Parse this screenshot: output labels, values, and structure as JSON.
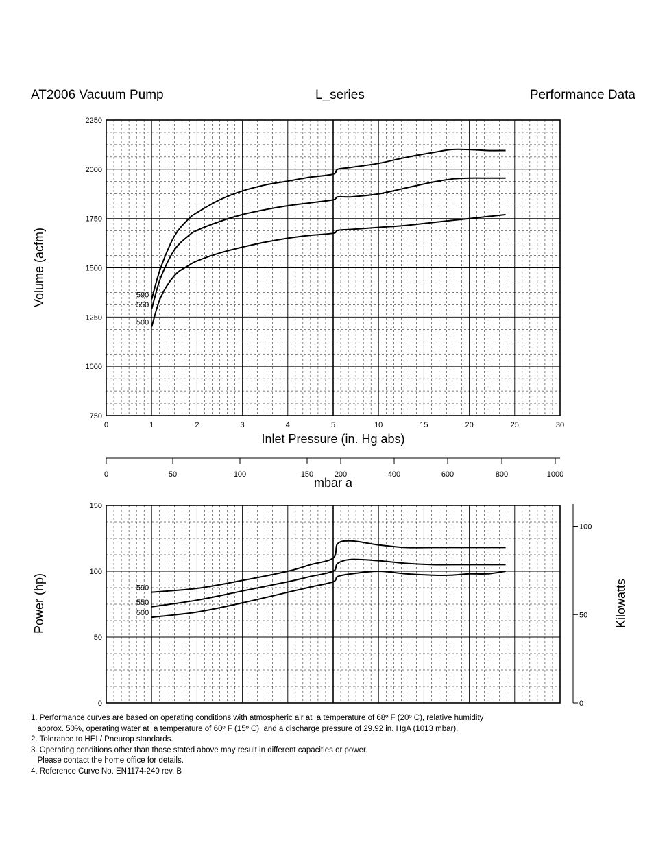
{
  "header": {
    "left": "AT2006 Vacuum Pump",
    "center": "L_series",
    "right": "Performance Data"
  },
  "chart_data": [
    {
      "type": "line",
      "ylabel": "Volume (acfm)",
      "xlabel": "Inlet Pressure (in. Hg abs)",
      "x_ticks": [
        "0",
        "1",
        "2",
        "3",
        "4",
        "5",
        "10",
        "15",
        "20",
        "25",
        "30"
      ],
      "y_ticks": [
        "750",
        "1000",
        "1250",
        "1500",
        "1750",
        "2000",
        "2250"
      ],
      "ylim": [
        750,
        2250
      ],
      "x_scale": "segmented: 0-5 linear, 5-30 linear (compressed)",
      "grid": true,
      "series": [
        {
          "name": "590",
          "x": [
            1,
            1.2,
            1.5,
            1.8,
            2,
            2.5,
            3,
            3.5,
            4,
            4.5,
            5,
            5.5,
            7,
            10,
            13,
            16,
            18,
            20,
            22,
            24
          ],
          "y": [
            1340,
            1500,
            1660,
            1745,
            1780,
            1845,
            1890,
            1920,
            1940,
            1960,
            1975,
            2000,
            2010,
            2030,
            2060,
            2085,
            2100,
            2100,
            2095,
            2095
          ]
        },
        {
          "name": "550",
          "x": [
            1,
            1.2,
            1.5,
            1.8,
            2,
            2.5,
            3,
            3.5,
            4,
            4.5,
            5,
            5.5,
            7,
            10,
            13,
            16,
            18,
            20,
            22,
            24
          ],
          "y": [
            1290,
            1450,
            1590,
            1660,
            1690,
            1735,
            1770,
            1795,
            1815,
            1830,
            1845,
            1860,
            1860,
            1875,
            1905,
            1935,
            1950,
            1955,
            1955,
            1955
          ]
        },
        {
          "name": "500",
          "x": [
            1,
            1.2,
            1.5,
            1.8,
            2,
            2.5,
            3,
            3.5,
            4,
            4.5,
            5,
            5.5,
            7,
            10,
            13,
            16,
            18,
            20,
            22,
            24
          ],
          "y": [
            1200,
            1350,
            1460,
            1510,
            1535,
            1575,
            1605,
            1630,
            1650,
            1665,
            1675,
            1690,
            1695,
            1705,
            1715,
            1730,
            1740,
            1750,
            1760,
            1770
          ]
        }
      ]
    },
    {
      "type": "axis",
      "xlabel": "mbar a",
      "ticks": [
        "0",
        "50",
        "100",
        "150",
        "200",
        "400",
        "600",
        "800",
        "1000"
      ]
    },
    {
      "type": "line",
      "ylabel": "Power (hp)",
      "y2label": "Kilowatts",
      "y_ticks": [
        "0",
        "50",
        "100",
        "150"
      ],
      "y2_ticks": [
        "0",
        "50",
        "100"
      ],
      "ylim": [
        0,
        150
      ],
      "grid": true,
      "series": [
        {
          "name": "590",
          "x": [
            1,
            2,
            3,
            4,
            4.5,
            5,
            5.5,
            7,
            10,
            13,
            16,
            18,
            20,
            22,
            24
          ],
          "y": [
            84,
            87,
            93,
            100,
            105,
            110,
            121,
            123,
            120,
            118,
            118,
            118,
            118,
            118,
            118
          ]
        },
        {
          "name": "550",
          "x": [
            1,
            2,
            3,
            4,
            4.5,
            5,
            5.5,
            7,
            10,
            13,
            16,
            18,
            20,
            22,
            24
          ],
          "y": [
            73,
            78,
            85,
            92,
            96,
            100,
            106,
            109,
            108,
            106,
            105,
            105,
            105,
            105,
            105
          ]
        },
        {
          "name": "500",
          "x": [
            1,
            2,
            3,
            4,
            4.5,
            5,
            5.5,
            7,
            10,
            13,
            16,
            18,
            20,
            22,
            24
          ],
          "y": [
            65,
            69,
            76,
            84,
            88,
            92,
            96,
            98,
            100,
            98,
            97,
            97,
            98,
            98,
            100
          ]
        }
      ]
    }
  ],
  "notes": [
    "1. Performance curves are based on operating conditions with atmospheric air at  a temperature of 68º F (20º C), relative humidity",
    "   approx. 50%, operating water at  a temperature of 60º F (15º C)  and a discharge pressure of 29.92 in. HgA (1013 mbar).",
    "2. Tolerance to HEI / Pneurop standards.",
    "3. Operating conditions other than those stated above may result in different capacities or power.",
    "   Please contact the home office for details.",
    "4. Reference Curve No. EN1174-240 rev. B"
  ]
}
